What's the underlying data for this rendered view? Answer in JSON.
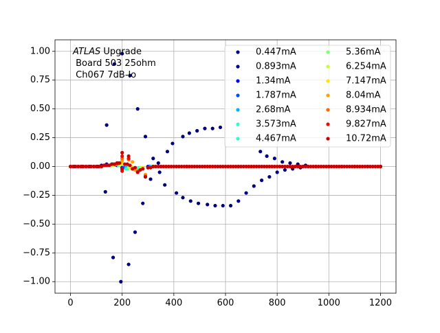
{
  "chart_data": {
    "type": "scatter",
    "title": "",
    "xlabel": "",
    "ylabel": "",
    "xlim": [
      -60,
      1260
    ],
    "ylim": [
      -1.1,
      1.1
    ],
    "xticks": [
      0,
      200,
      400,
      600,
      800,
      1000,
      1200
    ],
    "xtick_labels": [
      "0",
      "200",
      "400",
      "600",
      "800",
      "1000",
      "1200"
    ],
    "yticks": [
      -1.0,
      -0.75,
      -0.5,
      -0.25,
      0.0,
      0.25,
      0.5,
      0.75,
      1.0
    ],
    "ytick_labels": [
      "−1.00",
      "−0.75",
      "−0.50",
      "−0.25",
      "0.00",
      "0.25",
      "0.50",
      "0.75",
      "1.00"
    ],
    "grid": true,
    "legend_position": "top-right",
    "legend_columns": 2,
    "annotation": {
      "line1_italic": "ATLAS",
      "line1_rest": " Upgrade",
      "line2": " Board 503 25ohm",
      "line3": " Ch067 7dB-lo"
    },
    "series": [
      {
        "name": "0.447mA",
        "color": "#00007f",
        "points": [
          [
            0,
            0
          ],
          [
            15,
            0
          ],
          [
            30,
            0
          ],
          [
            45,
            0
          ],
          [
            60,
            0
          ],
          [
            75,
            0
          ],
          [
            90,
            0
          ],
          [
            105,
            0
          ],
          [
            120,
            0.01
          ],
          [
            135,
            -0.22
          ],
          [
            140,
            0.36
          ],
          [
            165,
            -0.79
          ],
          [
            170,
            0.89
          ],
          [
            195,
            -1.0
          ],
          [
            200,
            0.98
          ],
          [
            225,
            -0.85
          ],
          [
            230,
            0.79
          ],
          [
            250,
            -0.57
          ],
          [
            260,
            0.5
          ],
          [
            280,
            -0.32
          ],
          [
            290,
            0.26
          ],
          [
            310,
            -0.11
          ],
          [
            320,
            0.07
          ],
          [
            340,
            0.03
          ],
          [
            345,
            -0.05
          ],
          [
            365,
            -0.16
          ],
          [
            375,
            0.13
          ],
          [
            395,
            0.2
          ],
          [
            410,
            -0.23
          ],
          [
            435,
            -0.27
          ],
          [
            435,
            0.26
          ],
          [
            460,
            0.29
          ],
          [
            465,
            -0.3
          ],
          [
            490,
            0.31
          ],
          [
            495,
            -0.32
          ],
          [
            520,
            0.33
          ],
          [
            530,
            -0.33
          ],
          [
            550,
            0.33
          ],
          [
            560,
            -0.34
          ],
          [
            580,
            0.34
          ],
          [
            590,
            -0.34
          ],
          [
            620,
            -0.34
          ],
          [
            650,
            -0.3
          ],
          [
            680,
            -0.23
          ],
          [
            710,
            -0.17
          ],
          [
            735,
            0.13
          ],
          [
            740,
            -0.12
          ],
          [
            760,
            0.09
          ],
          [
            770,
            -0.09
          ],
          [
            790,
            0.07
          ],
          [
            800,
            -0.05
          ],
          [
            820,
            0.04
          ],
          [
            830,
            -0.03
          ],
          [
            850,
            0.03
          ],
          [
            860,
            -0.02
          ],
          [
            880,
            0.02
          ],
          [
            890,
            -0.01
          ],
          [
            910,
            0.01
          ],
          [
            920,
            0
          ],
          [
            950,
            0
          ],
          [
            1000,
            0
          ],
          [
            1050,
            0
          ],
          [
            1100,
            0
          ],
          [
            1150,
            0
          ],
          [
            1200,
            0
          ]
        ]
      },
      {
        "name": "0.893mA",
        "color": "#00009b",
        "points": [
          [
            100,
            0
          ],
          [
            140,
            0.02
          ],
          [
            160,
            0.02
          ],
          [
            180,
            0.01
          ],
          [
            200,
            -0.01
          ],
          [
            220,
            -0.02
          ],
          [
            250,
            -0.02
          ],
          [
            300,
            -0.01
          ],
          [
            350,
            0
          ],
          [
            450,
            0
          ],
          [
            650,
            0
          ],
          [
            900,
            0
          ],
          [
            1200,
            0
          ]
        ]
      },
      {
        "name": "1.34mA",
        "color": "#0000e8",
        "points": [
          [
            130,
            0.01
          ],
          [
            160,
            0.02
          ],
          [
            200,
            -0.01
          ],
          [
            240,
            -0.02
          ],
          [
            300,
            0
          ]
        ]
      },
      {
        "name": "1.787mA",
        "color": "#0050ff",
        "points": [
          [
            135,
            0.01
          ],
          [
            165,
            0.02
          ],
          [
            205,
            -0.01
          ],
          [
            245,
            -0.02
          ],
          [
            305,
            0
          ]
        ]
      },
      {
        "name": "2.68mA",
        "color": "#00b0ff",
        "points": [
          [
            145,
            0.01
          ],
          [
            175,
            0.02
          ],
          [
            215,
            -0.01
          ],
          [
            255,
            -0.02
          ],
          [
            310,
            0
          ]
        ]
      },
      {
        "name": "3.573mA",
        "color": "#29ffce",
        "points": [
          [
            150,
            0.01
          ],
          [
            180,
            0.02
          ],
          [
            215,
            -0.02
          ],
          [
            260,
            -0.02
          ],
          [
            315,
            0
          ]
        ]
      },
      {
        "name": "4.467mA",
        "color": "#29ffce",
        "points": [
          [
            155,
            0.01
          ],
          [
            185,
            0.01
          ],
          [
            220,
            -0.02
          ],
          [
            265,
            -0.01
          ],
          [
            320,
            0
          ]
        ]
      },
      {
        "name": "5.36mA",
        "color": "#7dff7a",
        "points": [
          [
            160,
            0.01
          ],
          [
            190,
            0.01
          ],
          [
            225,
            -0.01
          ],
          [
            270,
            -0.01
          ],
          [
            325,
            0
          ]
        ]
      },
      {
        "name": "6.254mA",
        "color": "#ceff29",
        "points": [
          [
            165,
            0.01
          ],
          [
            195,
            0.02
          ],
          [
            230,
            -0.01
          ],
          [
            275,
            -0.01
          ]
        ]
      },
      {
        "name": "7.147mA",
        "color": "#ffe600",
        "points": [
          [
            170,
            0.02
          ],
          [
            200,
            0.03
          ],
          [
            235,
            0
          ],
          [
            280,
            -0.01
          ]
        ]
      },
      {
        "name": "8.04mA",
        "color": "#ffa300",
        "points": [
          [
            175,
            0.02
          ],
          [
            200,
            0.05
          ],
          [
            200,
            -0.02
          ],
          [
            240,
            0.04
          ],
          [
            250,
            -0.03
          ],
          [
            290,
            -0.07
          ]
        ]
      },
      {
        "name": "8.934mA",
        "color": "#ff6800",
        "points": [
          [
            180,
            0.02
          ],
          [
            200,
            0.07
          ],
          [
            200,
            -0.03
          ],
          [
            225,
            0.06
          ],
          [
            260,
            -0.04
          ],
          [
            290,
            -0.08
          ]
        ]
      },
      {
        "name": "9.827mA",
        "color": "#f10800",
        "points": [
          [
            185,
            0.03
          ],
          [
            200,
            0.09
          ],
          [
            200,
            -0.04
          ],
          [
            225,
            0.07
          ],
          [
            260,
            -0.05
          ],
          [
            290,
            -0.09
          ]
        ]
      },
      {
        "name": "10.72mA",
        "color": "#cc0000",
        "points": [
          [
            0,
            0
          ],
          [
            10,
            0
          ],
          [
            20,
            0
          ],
          [
            30,
            0
          ],
          [
            40,
            0
          ],
          [
            50,
            0
          ],
          [
            60,
            0
          ],
          [
            70,
            0
          ],
          [
            80,
            0
          ],
          [
            90,
            0
          ],
          [
            100,
            0
          ],
          [
            110,
            0
          ],
          [
            120,
            0
          ],
          [
            130,
            0.01
          ],
          [
            140,
            0.01
          ],
          [
            150,
            0.01
          ],
          [
            160,
            0.02
          ],
          [
            170,
            0.02
          ],
          [
            180,
            0.03
          ],
          [
            190,
            0.03
          ],
          [
            200,
            0.12
          ],
          [
            200,
            -0.02
          ],
          [
            210,
            0.02
          ],
          [
            220,
            0.02
          ],
          [
            225,
            0.09
          ],
          [
            230,
            0.01
          ],
          [
            240,
            -0.02
          ],
          [
            250,
            -0.01
          ],
          [
            260,
            -0.05
          ],
          [
            270,
            -0.03
          ],
          [
            280,
            -0.02
          ],
          [
            290,
            -0.09
          ],
          [
            300,
            -0.01
          ],
          [
            310,
            -0.01
          ],
          [
            320,
            0
          ],
          [
            330,
            0
          ],
          [
            340,
            0
          ],
          [
            350,
            0
          ],
          [
            360,
            0
          ],
          [
            370,
            0
          ],
          [
            380,
            0
          ],
          [
            390,
            0
          ],
          [
            400,
            0
          ],
          [
            410,
            0
          ],
          [
            420,
            0
          ],
          [
            430,
            0
          ],
          [
            440,
            0
          ],
          [
            450,
            0
          ],
          [
            460,
            0
          ],
          [
            470,
            0
          ],
          [
            480,
            0
          ],
          [
            490,
            0
          ],
          [
            500,
            0
          ],
          [
            510,
            0
          ],
          [
            520,
            0
          ],
          [
            530,
            0
          ],
          [
            540,
            0
          ],
          [
            550,
            0
          ],
          [
            560,
            0
          ],
          [
            570,
            0
          ],
          [
            580,
            0
          ],
          [
            590,
            0
          ],
          [
            600,
            0
          ],
          [
            610,
            0
          ],
          [
            620,
            0
          ],
          [
            630,
            0
          ],
          [
            640,
            0
          ],
          [
            650,
            0
          ],
          [
            660,
            0
          ],
          [
            670,
            0
          ],
          [
            680,
            0
          ],
          [
            690,
            0
          ],
          [
            700,
            0
          ],
          [
            710,
            0
          ],
          [
            720,
            0
          ],
          [
            730,
            0
          ],
          [
            740,
            0
          ],
          [
            750,
            0
          ],
          [
            760,
            0
          ],
          [
            770,
            0
          ],
          [
            780,
            0
          ],
          [
            790,
            0
          ],
          [
            800,
            0
          ],
          [
            810,
            0
          ],
          [
            820,
            0
          ],
          [
            830,
            0
          ],
          [
            840,
            0
          ],
          [
            850,
            0
          ],
          [
            860,
            0
          ],
          [
            870,
            0
          ],
          [
            880,
            0
          ],
          [
            890,
            0
          ],
          [
            900,
            0
          ],
          [
            910,
            0
          ],
          [
            920,
            0
          ],
          [
            930,
            0
          ],
          [
            940,
            0
          ],
          [
            950,
            0
          ],
          [
            960,
            0
          ],
          [
            970,
            0
          ],
          [
            980,
            0
          ],
          [
            990,
            0
          ],
          [
            1000,
            0
          ],
          [
            1010,
            0
          ],
          [
            1020,
            0
          ],
          [
            1030,
            0
          ],
          [
            1040,
            0
          ],
          [
            1050,
            0
          ],
          [
            1060,
            0
          ],
          [
            1070,
            0
          ],
          [
            1080,
            0
          ],
          [
            1090,
            0
          ],
          [
            1100,
            0
          ],
          [
            1110,
            0
          ],
          [
            1120,
            0
          ],
          [
            1130,
            0
          ],
          [
            1140,
            0
          ],
          [
            1150,
            0
          ],
          [
            1160,
            0
          ],
          [
            1170,
            0
          ],
          [
            1180,
            0
          ],
          [
            1190,
            0
          ],
          [
            1200,
            0
          ]
        ]
      }
    ]
  }
}
